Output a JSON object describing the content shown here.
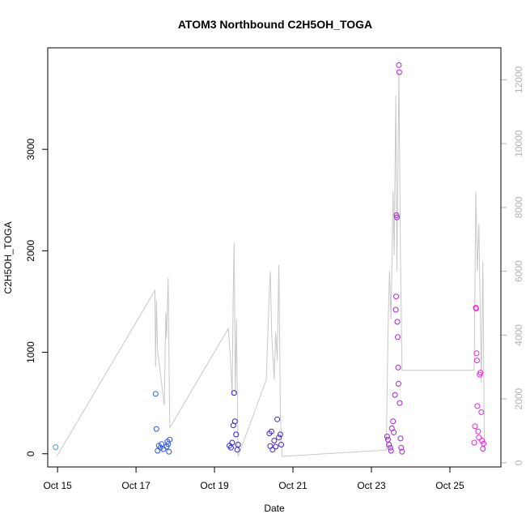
{
  "chart_data": {
    "type": "scatter",
    "title": "ATOM3 Northbound C2H5OH_TOGA",
    "xlabel": "Date",
    "ylabel": "C2H5OH_TOGA",
    "xlim": [
      14.75,
      26.3
    ],
    "ylim": [
      -130,
      4000
    ],
    "y2lim": [
      -130,
      13000
    ],
    "x_ticks": [
      {
        "value": 15,
        "label": "Oct 15"
      },
      {
        "value": 17,
        "label": "Oct 17"
      },
      {
        "value": 19,
        "label": "Oct 19"
      },
      {
        "value": 21,
        "label": "Oct 21"
      },
      {
        "value": 23,
        "label": "Oct 23"
      },
      {
        "value": 25,
        "label": "Oct 25"
      }
    ],
    "y_ticks": [
      {
        "value": 0,
        "label": "0"
      },
      {
        "value": 1000,
        "label": "1000"
      },
      {
        "value": 2000,
        "label": "2000"
      },
      {
        "value": 3000,
        "label": "3000"
      }
    ],
    "y2_ticks": [
      {
        "value": 0,
        "label": "0"
      },
      {
        "value": 2000,
        "label": "2000"
      },
      {
        "value": 4000,
        "label": "4000"
      },
      {
        "value": 6000,
        "label": "6000"
      },
      {
        "value": 8000,
        "label": "8000"
      },
      {
        "value": 10000,
        "label": "10000"
      },
      {
        "value": 12000,
        "label": "12000"
      }
    ],
    "colors": {
      "line": "#c8c8c8",
      "right_axis": "#b3b3b3",
      "points_start": "#2ea8f0",
      "points_mid": "#2a1ee0",
      "points_end": "#ee22dd"
    },
    "line_series_secondary_axis": [
      [
        14.98,
        200
      ],
      [
        17.48,
        5400
      ],
      [
        17.5,
        3000
      ],
      [
        17.52,
        5100
      ],
      [
        17.55,
        3500
      ],
      [
        17.72,
        1800
      ],
      [
        17.76,
        4700
      ],
      [
        17.78,
        3900
      ],
      [
        17.82,
        5800
      ],
      [
        17.86,
        1100
      ],
      [
        19.35,
        4200
      ],
      [
        19.4,
        3400
      ],
      [
        19.45,
        2100
      ],
      [
        19.48,
        5500
      ],
      [
        19.5,
        6900
      ],
      [
        19.53,
        2200
      ],
      [
        19.56,
        4500
      ],
      [
        19.6,
        200
      ],
      [
        20.32,
        2600
      ],
      [
        20.38,
        4800
      ],
      [
        20.42,
        6000
      ],
      [
        20.46,
        4000
      ],
      [
        20.52,
        2600
      ],
      [
        20.56,
        4100
      ],
      [
        20.6,
        3200
      ],
      [
        20.64,
        6200
      ],
      [
        20.68,
        1500
      ],
      [
        20.72,
        200
      ],
      [
        23.38,
        400
      ],
      [
        23.42,
        4000
      ],
      [
        23.46,
        6000
      ],
      [
        23.5,
        4500
      ],
      [
        23.55,
        8500
      ],
      [
        23.58,
        6500
      ],
      [
        23.62,
        11500
      ],
      [
        23.65,
        6000
      ],
      [
        23.7,
        12300
      ],
      [
        23.74,
        6500
      ],
      [
        23.78,
        2900
      ],
      [
        25.62,
        2900
      ],
      [
        25.66,
        8500
      ],
      [
        25.7,
        6000
      ],
      [
        25.74,
        7500
      ],
      [
        25.8,
        2500
      ],
      [
        25.84,
        6300
      ],
      [
        25.88,
        400
      ]
    ],
    "series": [
      {
        "name": "points",
        "points": [
          [
            14.95,
            65
          ],
          [
            17.5,
            590
          ],
          [
            17.52,
            245
          ],
          [
            17.55,
            30
          ],
          [
            17.58,
            80
          ],
          [
            17.62,
            60
          ],
          [
            17.65,
            95
          ],
          [
            17.7,
            45
          ],
          [
            17.78,
            70
          ],
          [
            17.8,
            120
          ],
          [
            17.82,
            95
          ],
          [
            17.84,
            20
          ],
          [
            17.86,
            140
          ],
          [
            19.38,
            80
          ],
          [
            19.42,
            60
          ],
          [
            19.45,
            110
          ],
          [
            19.48,
            280
          ],
          [
            19.5,
            600
          ],
          [
            19.52,
            320
          ],
          [
            19.55,
            190
          ],
          [
            19.58,
            40
          ],
          [
            19.6,
            90
          ],
          [
            20.4,
            200
          ],
          [
            20.42,
            75
          ],
          [
            20.45,
            220
          ],
          [
            20.48,
            40
          ],
          [
            20.52,
            130
          ],
          [
            20.56,
            70
          ],
          [
            20.6,
            340
          ],
          [
            20.64,
            160
          ],
          [
            20.68,
            190
          ],
          [
            20.7,
            90
          ],
          [
            23.4,
            170
          ],
          [
            23.42,
            140
          ],
          [
            23.45,
            90
          ],
          [
            23.48,
            60
          ],
          [
            23.5,
            30
          ],
          [
            23.52,
            250
          ],
          [
            23.55,
            320
          ],
          [
            23.57,
            210
          ],
          [
            23.6,
            580
          ],
          [
            23.62,
            1420
          ],
          [
            23.63,
            1550
          ],
          [
            23.64,
            2350
          ],
          [
            23.65,
            2330
          ],
          [
            23.66,
            1300
          ],
          [
            23.67,
            1150
          ],
          [
            23.68,
            850
          ],
          [
            23.69,
            690
          ],
          [
            23.7,
            3830
          ],
          [
            23.71,
            3760
          ],
          [
            23.72,
            500
          ],
          [
            23.74,
            150
          ],
          [
            23.76,
            60
          ],
          [
            23.78,
            20
          ],
          [
            25.62,
            110
          ],
          [
            25.64,
            270
          ],
          [
            25.66,
            1440
          ],
          [
            25.67,
            1430
          ],
          [
            25.68,
            990
          ],
          [
            25.69,
            920
          ],
          [
            25.7,
            470
          ],
          [
            25.72,
            220
          ],
          [
            25.74,
            160
          ],
          [
            25.76,
            780
          ],
          [
            25.78,
            800
          ],
          [
            25.8,
            410
          ],
          [
            25.82,
            130
          ],
          [
            25.84,
            50
          ],
          [
            25.86,
            100
          ]
        ]
      }
    ]
  }
}
